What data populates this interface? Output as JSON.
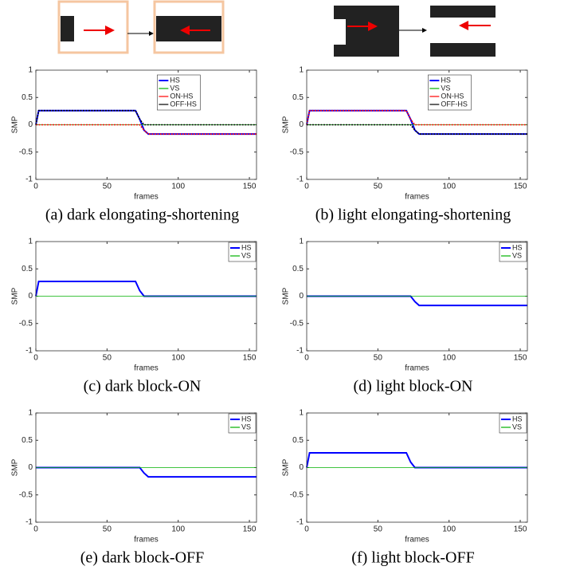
{
  "chart_data": [
    {
      "type": "line",
      "caption": "(a) dark elongating-shortening",
      "xlabel": "frames",
      "ylabel": "SMP",
      "x": [
        0,
        2,
        70,
        73,
        76,
        79,
        155
      ],
      "xlim": [
        0,
        155
      ],
      "xticks": [
        0,
        50,
        100,
        150
      ],
      "ylim": [
        -1,
        1
      ],
      "yticks": [
        -1,
        -0.5,
        0,
        0.5,
        1
      ],
      "legend": "upper center",
      "series": [
        {
          "name": "HS",
          "color": "#0000ff",
          "values": [
            0,
            0.26,
            0.26,
            0.1,
            -0.1,
            -0.17,
            -0.17
          ]
        },
        {
          "name": "VS",
          "color": "#00b000",
          "values": [
            0,
            0,
            0,
            0,
            0,
            0,
            0
          ]
        },
        {
          "name": "ON-HS",
          "color": "#ff0000",
          "values": [
            0,
            0,
            0,
            0,
            -0.1,
            -0.17,
            -0.17
          ]
        },
        {
          "name": "OFF-HS",
          "color": "#000000",
          "values": [
            0,
            0.26,
            0.26,
            0.1,
            0,
            0,
            0
          ]
        }
      ]
    },
    {
      "type": "line",
      "caption": "(b) light elongating-shortening",
      "xlabel": "frames",
      "ylabel": "SMP",
      "x": [
        0,
        2,
        70,
        73,
        76,
        79,
        155
      ],
      "xlim": [
        0,
        155
      ],
      "xticks": [
        0,
        50,
        100,
        150
      ],
      "ylim": [
        -1,
        1
      ],
      "yticks": [
        -1,
        -0.5,
        0,
        0.5,
        1
      ],
      "legend": "upper center",
      "series": [
        {
          "name": "HS",
          "color": "#0000ff",
          "values": [
            0,
            0.26,
            0.26,
            0.1,
            -0.1,
            -0.17,
            -0.17
          ]
        },
        {
          "name": "VS",
          "color": "#00b000",
          "values": [
            0,
            0,
            0,
            0,
            0,
            0,
            0
          ]
        },
        {
          "name": "ON-HS",
          "color": "#ff0000",
          "values": [
            0,
            0.26,
            0.26,
            0.1,
            0,
            0,
            0
          ]
        },
        {
          "name": "OFF-HS",
          "color": "#000000",
          "values": [
            0,
            0,
            0,
            0,
            -0.1,
            -0.17,
            -0.17
          ]
        }
      ]
    },
    {
      "type": "line",
      "caption": "(c) dark block-ON",
      "xlabel": "frames",
      "ylabel": "SMP",
      "x": [
        0,
        2,
        70,
        73,
        76,
        79,
        155
      ],
      "xlim": [
        0,
        155
      ],
      "xticks": [
        0,
        50,
        100,
        150
      ],
      "ylim": [
        -1,
        1
      ],
      "yticks": [
        -1,
        -0.5,
        0,
        0.5,
        1
      ],
      "legend": "upper right",
      "series": [
        {
          "name": "HS",
          "color": "#0000ff",
          "values": [
            0,
            0.27,
            0.27,
            0.1,
            0,
            0,
            0
          ]
        },
        {
          "name": "VS",
          "color": "#00b000",
          "values": [
            0,
            0,
            0,
            0,
            0,
            0,
            0
          ]
        }
      ]
    },
    {
      "type": "line",
      "caption": "(d) light block-ON",
      "xlabel": "frames",
      "ylabel": "SMP",
      "x": [
        0,
        2,
        70,
        73,
        76,
        79,
        155
      ],
      "xlim": [
        0,
        155
      ],
      "xticks": [
        0,
        50,
        100,
        150
      ],
      "ylim": [
        -1,
        1
      ],
      "yticks": [
        -1,
        -0.5,
        0,
        0.5,
        1
      ],
      "legend": "upper right",
      "series": [
        {
          "name": "HS",
          "color": "#0000ff",
          "values": [
            0,
            0,
            0,
            0,
            -0.1,
            -0.17,
            -0.17
          ]
        },
        {
          "name": "VS",
          "color": "#00b000",
          "values": [
            0,
            0,
            0,
            0,
            0,
            0,
            0
          ]
        }
      ]
    },
    {
      "type": "line",
      "caption": "(e) dark block-OFF",
      "xlabel": "frames",
      "ylabel": "SMP",
      "x": [
        0,
        2,
        70,
        73,
        76,
        79,
        155
      ],
      "xlim": [
        0,
        155
      ],
      "xticks": [
        0,
        50,
        100,
        150
      ],
      "ylim": [
        -1,
        1
      ],
      "yticks": [
        -1,
        -0.5,
        0,
        0.5,
        1
      ],
      "legend": "upper right",
      "series": [
        {
          "name": "HS",
          "color": "#0000ff",
          "values": [
            0,
            0,
            0,
            0,
            -0.1,
            -0.17,
            -0.17
          ]
        },
        {
          "name": "VS",
          "color": "#00b000",
          "values": [
            0,
            0,
            0,
            0,
            0,
            0,
            0
          ]
        }
      ]
    },
    {
      "type": "line",
      "caption": "(f) light block-OFF",
      "xlabel": "frames",
      "ylabel": "SMP",
      "x": [
        0,
        2,
        70,
        73,
        76,
        79,
        155
      ],
      "xlim": [
        0,
        155
      ],
      "xticks": [
        0,
        50,
        100,
        150
      ],
      "ylim": [
        -1,
        1
      ],
      "yticks": [
        -1,
        -0.5,
        0,
        0.5,
        1
      ],
      "legend": "upper right",
      "series": [
        {
          "name": "HS",
          "color": "#0000ff",
          "values": [
            0,
            0.27,
            0.27,
            0.1,
            0,
            0,
            0
          ]
        },
        {
          "name": "VS",
          "color": "#00b000",
          "values": [
            0,
            0,
            0,
            0,
            0,
            0,
            0
          ]
        }
      ]
    }
  ]
}
